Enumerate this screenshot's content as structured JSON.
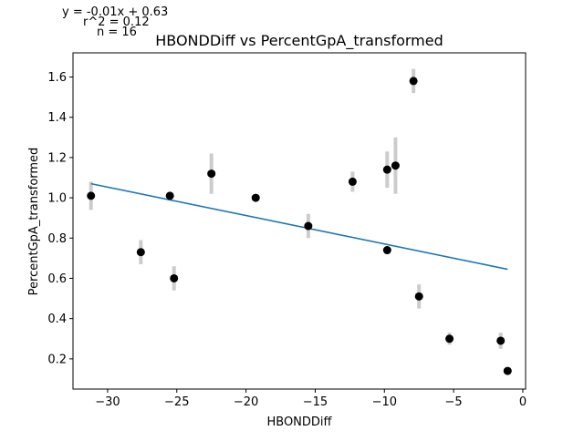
{
  "chart_data": {
    "type": "scatter",
    "title": "HBONDDiff vs PercentGpA_transformed",
    "xlabel": "HBONDDiff",
    "ylabel": "PercentGpA_transformed",
    "xlim": [
      -32.5,
      0.2
    ],
    "ylim": [
      0.05,
      1.72
    ],
    "xticks": [
      -30,
      -25,
      -20,
      -15,
      -10,
      -5,
      0
    ],
    "xtick_labels": [
      "−30",
      "−25",
      "−20",
      "−15",
      "−10",
      "−5",
      "0"
    ],
    "yticks": [
      0.2,
      0.4,
      0.6,
      0.8,
      1.0,
      1.2,
      1.4,
      1.6
    ],
    "ytick_labels": [
      "0.2",
      "0.4",
      "0.6",
      "0.8",
      "1.0",
      "1.2",
      "1.4",
      "1.6"
    ],
    "grid": false,
    "annotations": [
      "y = -0.01x + 0.63",
      "r^2 = 0.12",
      "n = 16"
    ],
    "points": [
      {
        "x": -31.2,
        "y": 1.01,
        "err": 0.07
      },
      {
        "x": -27.6,
        "y": 0.73,
        "err": 0.06
      },
      {
        "x": -25.5,
        "y": 1.01,
        "err": 0.01
      },
      {
        "x": -25.2,
        "y": 0.6,
        "err": 0.06
      },
      {
        "x": -22.5,
        "y": 1.12,
        "err": 0.1
      },
      {
        "x": -19.3,
        "y": 1.0,
        "err": 0.01
      },
      {
        "x": -15.5,
        "y": 0.86,
        "err": 0.06
      },
      {
        "x": -12.3,
        "y": 1.08,
        "err": 0.05
      },
      {
        "x": -9.8,
        "y": 1.14,
        "err": 0.09
      },
      {
        "x": -9.8,
        "y": 0.74,
        "err": 0.02
      },
      {
        "x": -9.2,
        "y": 1.16,
        "err": 0.14
      },
      {
        "x": -7.9,
        "y": 1.58,
        "err": 0.06
      },
      {
        "x": -7.5,
        "y": 0.51,
        "err": 0.06
      },
      {
        "x": -5.3,
        "y": 0.3,
        "err": 0.03
      },
      {
        "x": -1.6,
        "y": 0.29,
        "err": 0.04
      },
      {
        "x": -1.1,
        "y": 0.14,
        "err": 0.01
      }
    ],
    "fit_line": {
      "x": [
        -31.2,
        -1.1
      ],
      "y": [
        1.07,
        0.645
      ]
    },
    "colors": {
      "points": "#000000",
      "errorbars": "#cccccc",
      "fit_line": "#1f77b4"
    }
  }
}
